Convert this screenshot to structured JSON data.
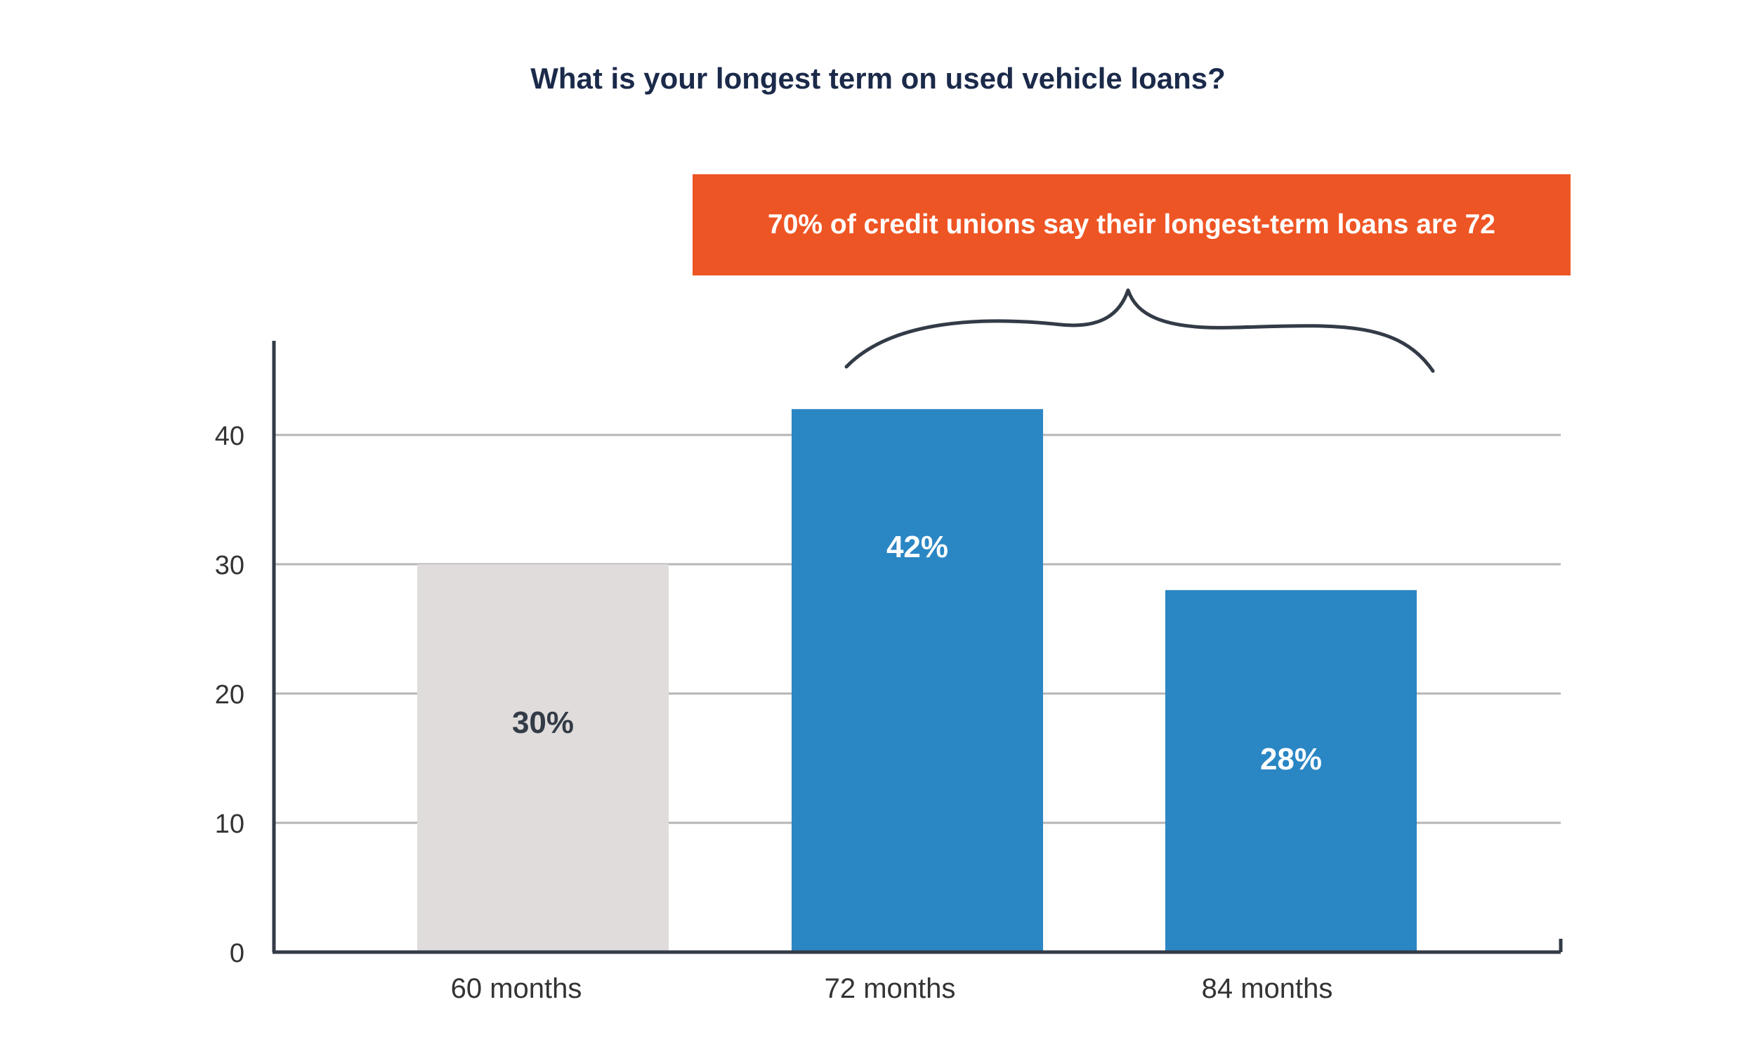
{
  "chart_data": {
    "type": "bar",
    "title": "What is your longest term on used vehicle loans?",
    "categories": [
      "60 months",
      "72 months",
      "84 months"
    ],
    "values": [
      30,
      42,
      28
    ],
    "data_labels": [
      "30%",
      "42%",
      "28%"
    ],
    "yticks": [
      "0",
      "10",
      "20",
      "30",
      "40"
    ],
    "ylim": [
      0,
      47
    ],
    "grid": true,
    "xlabel": "",
    "ylabel": "",
    "colors": [
      "#dfdcdb",
      "#2b86c4",
      "#2b86c4"
    ],
    "label_colors": [
      "#333b47",
      "#ffffff",
      "#ffffff"
    ],
    "annotation": "70% of credit unions say their longest-term loans are 72"
  },
  "colors": {
    "title": "#1b2a4a",
    "callout_bg": "#ee5524",
    "axis": "#333b47",
    "grid": "#b5b5b5"
  }
}
